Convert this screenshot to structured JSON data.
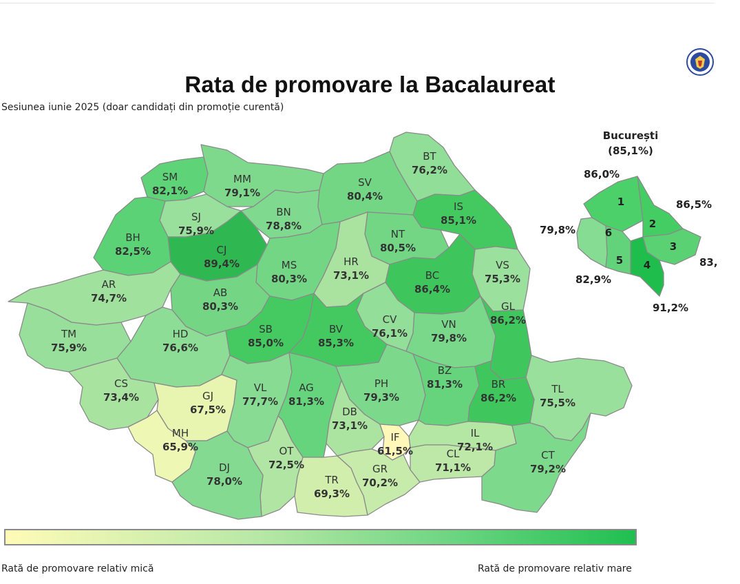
{
  "title": "Rata de promovare la Bacalaureat",
  "subtitle": "Sesiunea iunie 2025 (doar candidați din promoție curentă)",
  "bucuresti": {
    "name": "București",
    "rate": "(85,1%)",
    "sectors": [
      {
        "code": "1",
        "value": "86,0%",
        "fill": "#4cd06a"
      },
      {
        "code": "2",
        "value": "86,5%",
        "fill": "#44cd63"
      },
      {
        "code": "3",
        "value": "83,",
        "fill": "#5ad274"
      },
      {
        "code": "4",
        "value": "91,2%",
        "fill": "#1fbd4c"
      },
      {
        "code": "5",
        "value": "82,9%",
        "fill": "#63d37b"
      },
      {
        "code": "6",
        "value": "79,8%",
        "fill": "#86dc92"
      }
    ]
  },
  "counties": [
    {
      "code": "SM",
      "value": "82,1%",
      "fill": "#5fd378"
    },
    {
      "code": "MM",
      "value": "79,1%",
      "fill": "#7ed98d"
    },
    {
      "code": "BT",
      "value": "76,2%",
      "fill": "#90de97"
    },
    {
      "code": "SJ",
      "value": "75,9%",
      "fill": "#98e09c"
    },
    {
      "code": "BN",
      "value": "78,8%",
      "fill": "#7fd98e"
    },
    {
      "code": "SV",
      "value": "80,4%",
      "fill": "#72d684"
    },
    {
      "code": "IS",
      "value": "85,1%",
      "fill": "#44c960"
    },
    {
      "code": "BH",
      "value": "82,5%",
      "fill": "#5bd275"
    },
    {
      "code": "CJ",
      "value": "89,4%",
      "fill": "#2fb851"
    },
    {
      "code": "NT",
      "value": "80,5%",
      "fill": "#72d684"
    },
    {
      "code": "HR",
      "value": "73,1%",
      "fill": "#a9e39f"
    },
    {
      "code": "MS",
      "value": "80,3%",
      "fill": "#73d685"
    },
    {
      "code": "BC",
      "value": "86,4%",
      "fill": "#3ec65c"
    },
    {
      "code": "VS",
      "value": "75,3%",
      "fill": "#9be09c"
    },
    {
      "code": "AR",
      "value": "74,7%",
      "fill": "#a0e19e"
    },
    {
      "code": "AB",
      "value": "80,3%",
      "fill": "#74d685"
    },
    {
      "code": "TM",
      "value": "75,9%",
      "fill": "#97df9b"
    },
    {
      "code": "HD",
      "value": "76,6%",
      "fill": "#8ddd96"
    },
    {
      "code": "SB",
      "value": "85,0%",
      "fill": "#45ca61"
    },
    {
      "code": "BV",
      "value": "85,3%",
      "fill": "#43c95f"
    },
    {
      "code": "CV",
      "value": "76,1%",
      "fill": "#93de98"
    },
    {
      "code": "VN",
      "value": "79,8%",
      "fill": "#7ad88b"
    },
    {
      "code": "GL",
      "value": "86,2%",
      "fill": "#3fc75d"
    },
    {
      "code": "CS",
      "value": "73,4%",
      "fill": "#a8e3a0"
    },
    {
      "code": "GJ",
      "value": "67,5%",
      "fill": "#e8f5b0"
    },
    {
      "code": "VL",
      "value": "77,7%",
      "fill": "#87db92"
    },
    {
      "code": "AG",
      "value": "81,3%",
      "fill": "#66d47c"
    },
    {
      "code": "PH",
      "value": "79,3%",
      "fill": "#7cd98c"
    },
    {
      "code": "BZ",
      "value": "81,3%",
      "fill": "#66d47c"
    },
    {
      "code": "BR",
      "value": "86,2%",
      "fill": "#3fc75d"
    },
    {
      "code": "TL",
      "value": "75,5%",
      "fill": "#99e09c"
    },
    {
      "code": "DB",
      "value": "73,1%",
      "fill": "#abe4a1"
    },
    {
      "code": "MH",
      "value": "65,9%",
      "fill": "#eef7b4"
    },
    {
      "code": "IL",
      "value": "72,1%",
      "fill": "#b4e6a4"
    },
    {
      "code": "IF",
      "value": "61,5%",
      "fill": "#fff8b8"
    },
    {
      "code": "OT",
      "value": "72,5%",
      "fill": "#b0e5a3"
    },
    {
      "code": "GR",
      "value": "70,2%",
      "fill": "#c6ebaa"
    },
    {
      "code": "CL",
      "value": "71,1%",
      "fill": "#bde8a7"
    },
    {
      "code": "DJ",
      "value": "78,0%",
      "fill": "#83da90"
    },
    {
      "code": "TR",
      "value": "69,3%",
      "fill": "#d2eead"
    },
    {
      "code": "CT",
      "value": "79,2%",
      "fill": "#7dd98c"
    }
  ],
  "legend": {
    "low_label": "Rată de promovare relativ mică",
    "high_label": "Rată de promovare relativ mare",
    "color_low": "#fffbb8",
    "color_high": "#1fbf4f"
  },
  "logo_icon": "ministry-seal-icon"
}
